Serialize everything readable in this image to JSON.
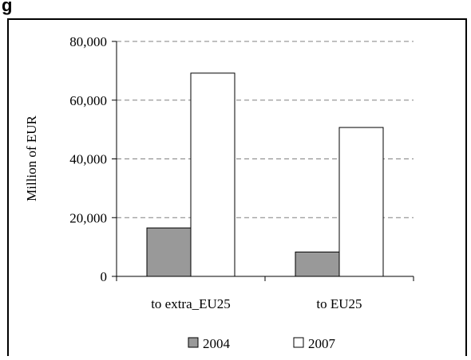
{
  "chart_data": {
    "type": "bar",
    "title": "g",
    "xlabel": "",
    "ylabel": "Million of EUR",
    "categories": [
      "to extra_EU25",
      "to EU25"
    ],
    "series": [
      {
        "name": "2004",
        "values": [
          16500,
          8300
        ],
        "color": "#999999"
      },
      {
        "name": "2007",
        "values": [
          69200,
          50700
        ],
        "color": "#ffffff"
      }
    ],
    "ylim": [
      0,
      80000
    ],
    "yticks": [
      0,
      20000,
      40000,
      60000,
      80000
    ],
    "ytick_labels": [
      "0",
      "20,000",
      "40,000",
      "60,000",
      "80,000"
    ],
    "grid": true,
    "legend_position": "bottom"
  }
}
